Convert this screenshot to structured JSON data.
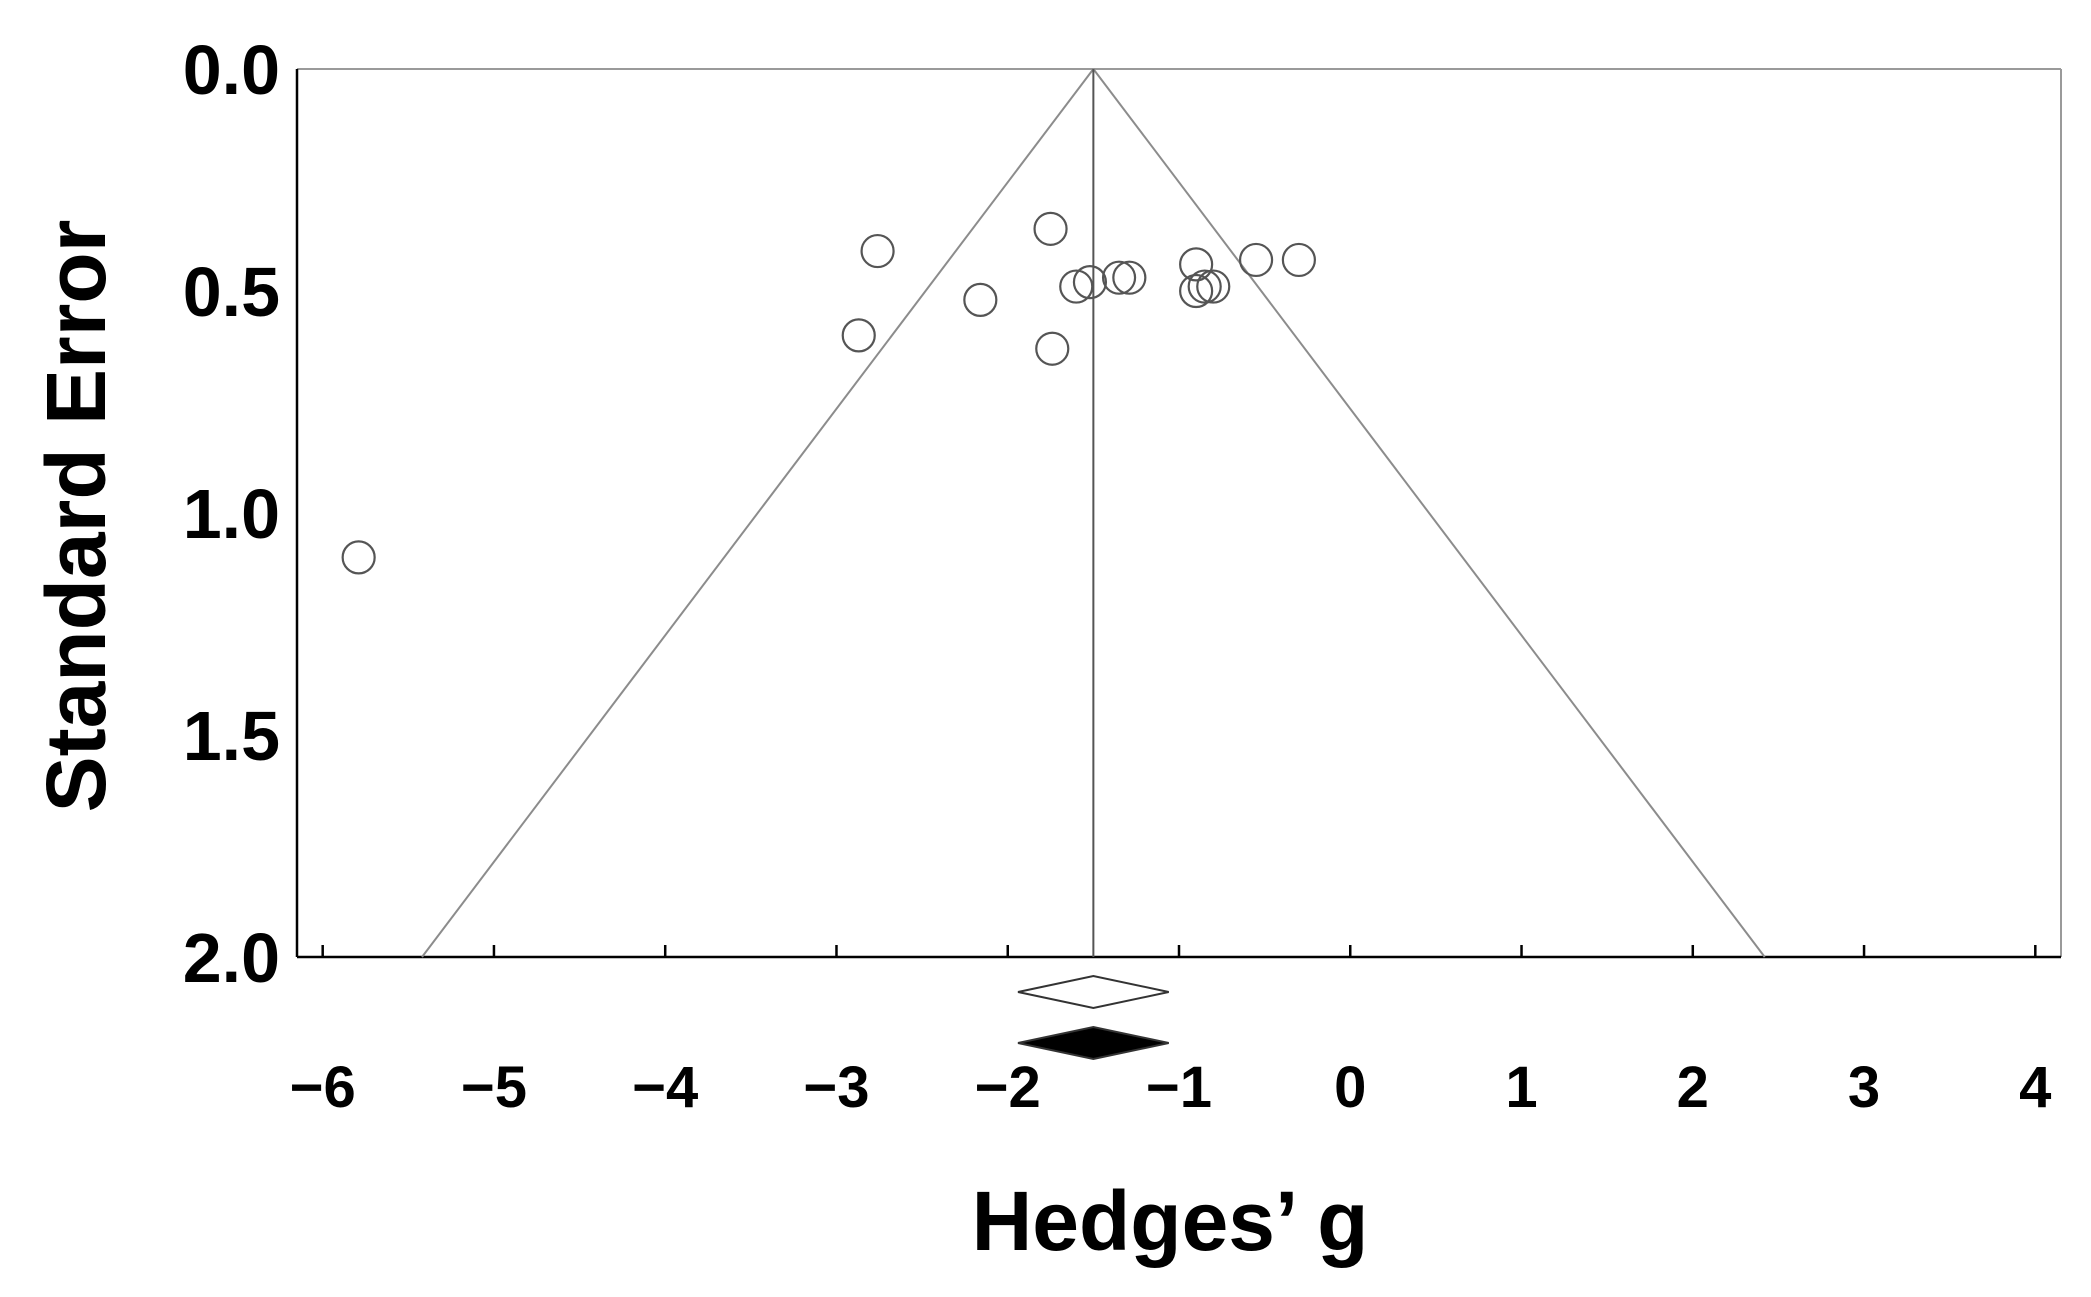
{
  "chart_data": {
    "type": "scatter",
    "title": "",
    "xlabel": "Hedges’ g",
    "ylabel": "Standard Error",
    "xlim": [
      -6.15,
      4.15
    ],
    "ylim": [
      0.0,
      2.0
    ],
    "y_inverted": true,
    "x_ticks": [
      -6,
      -5,
      -4,
      -3,
      -2,
      -1,
      0,
      1,
      2,
      3,
      4
    ],
    "x_tick_labels": [
      "−6",
      "−5",
      "−4",
      "−3",
      "−2",
      "−1",
      "0",
      "1",
      "2",
      "3",
      "4"
    ],
    "y_ticks": [
      0.0,
      0.5,
      1.0,
      1.5,
      2.0
    ],
    "y_tick_labels": [
      "0.0",
      "0.5",
      "1.0",
      "1.5",
      "2.0"
    ],
    "pooled_effect": -1.5,
    "funnel_limit_multiplier": 1.96,
    "grid": false,
    "points": [
      {
        "x": -5.79,
        "y": 1.1
      },
      {
        "x": -2.76,
        "y": 0.41
      },
      {
        "x": -2.87,
        "y": 0.6
      },
      {
        "x": -2.16,
        "y": 0.52
      },
      {
        "x": -1.75,
        "y": 0.36
      },
      {
        "x": -1.74,
        "y": 0.63
      },
      {
        "x": -1.6,
        "y": 0.49
      },
      {
        "x": -1.52,
        "y": 0.48
      },
      {
        "x": -1.35,
        "y": 0.47
      },
      {
        "x": -1.29,
        "y": 0.47
      },
      {
        "x": -0.9,
        "y": 0.44
      },
      {
        "x": -0.9,
        "y": 0.5
      },
      {
        "x": -0.85,
        "y": 0.49
      },
      {
        "x": -0.8,
        "y": 0.49
      },
      {
        "x": -0.55,
        "y": 0.43
      },
      {
        "x": -0.3,
        "y": 0.43
      }
    ],
    "summary_markers": [
      {
        "name": "observed",
        "center": -1.5,
        "lower": -1.94,
        "upper": -1.06,
        "fill": "#ffffff"
      },
      {
        "name": "adjusted",
        "center": -1.5,
        "lower": -1.94,
        "upper": -1.06,
        "fill": "#000000"
      }
    ]
  },
  "colors": {
    "frame": "#9a9a9a",
    "funnel": "#8c8c8c",
    "point": "#555555",
    "text": "#000000"
  }
}
